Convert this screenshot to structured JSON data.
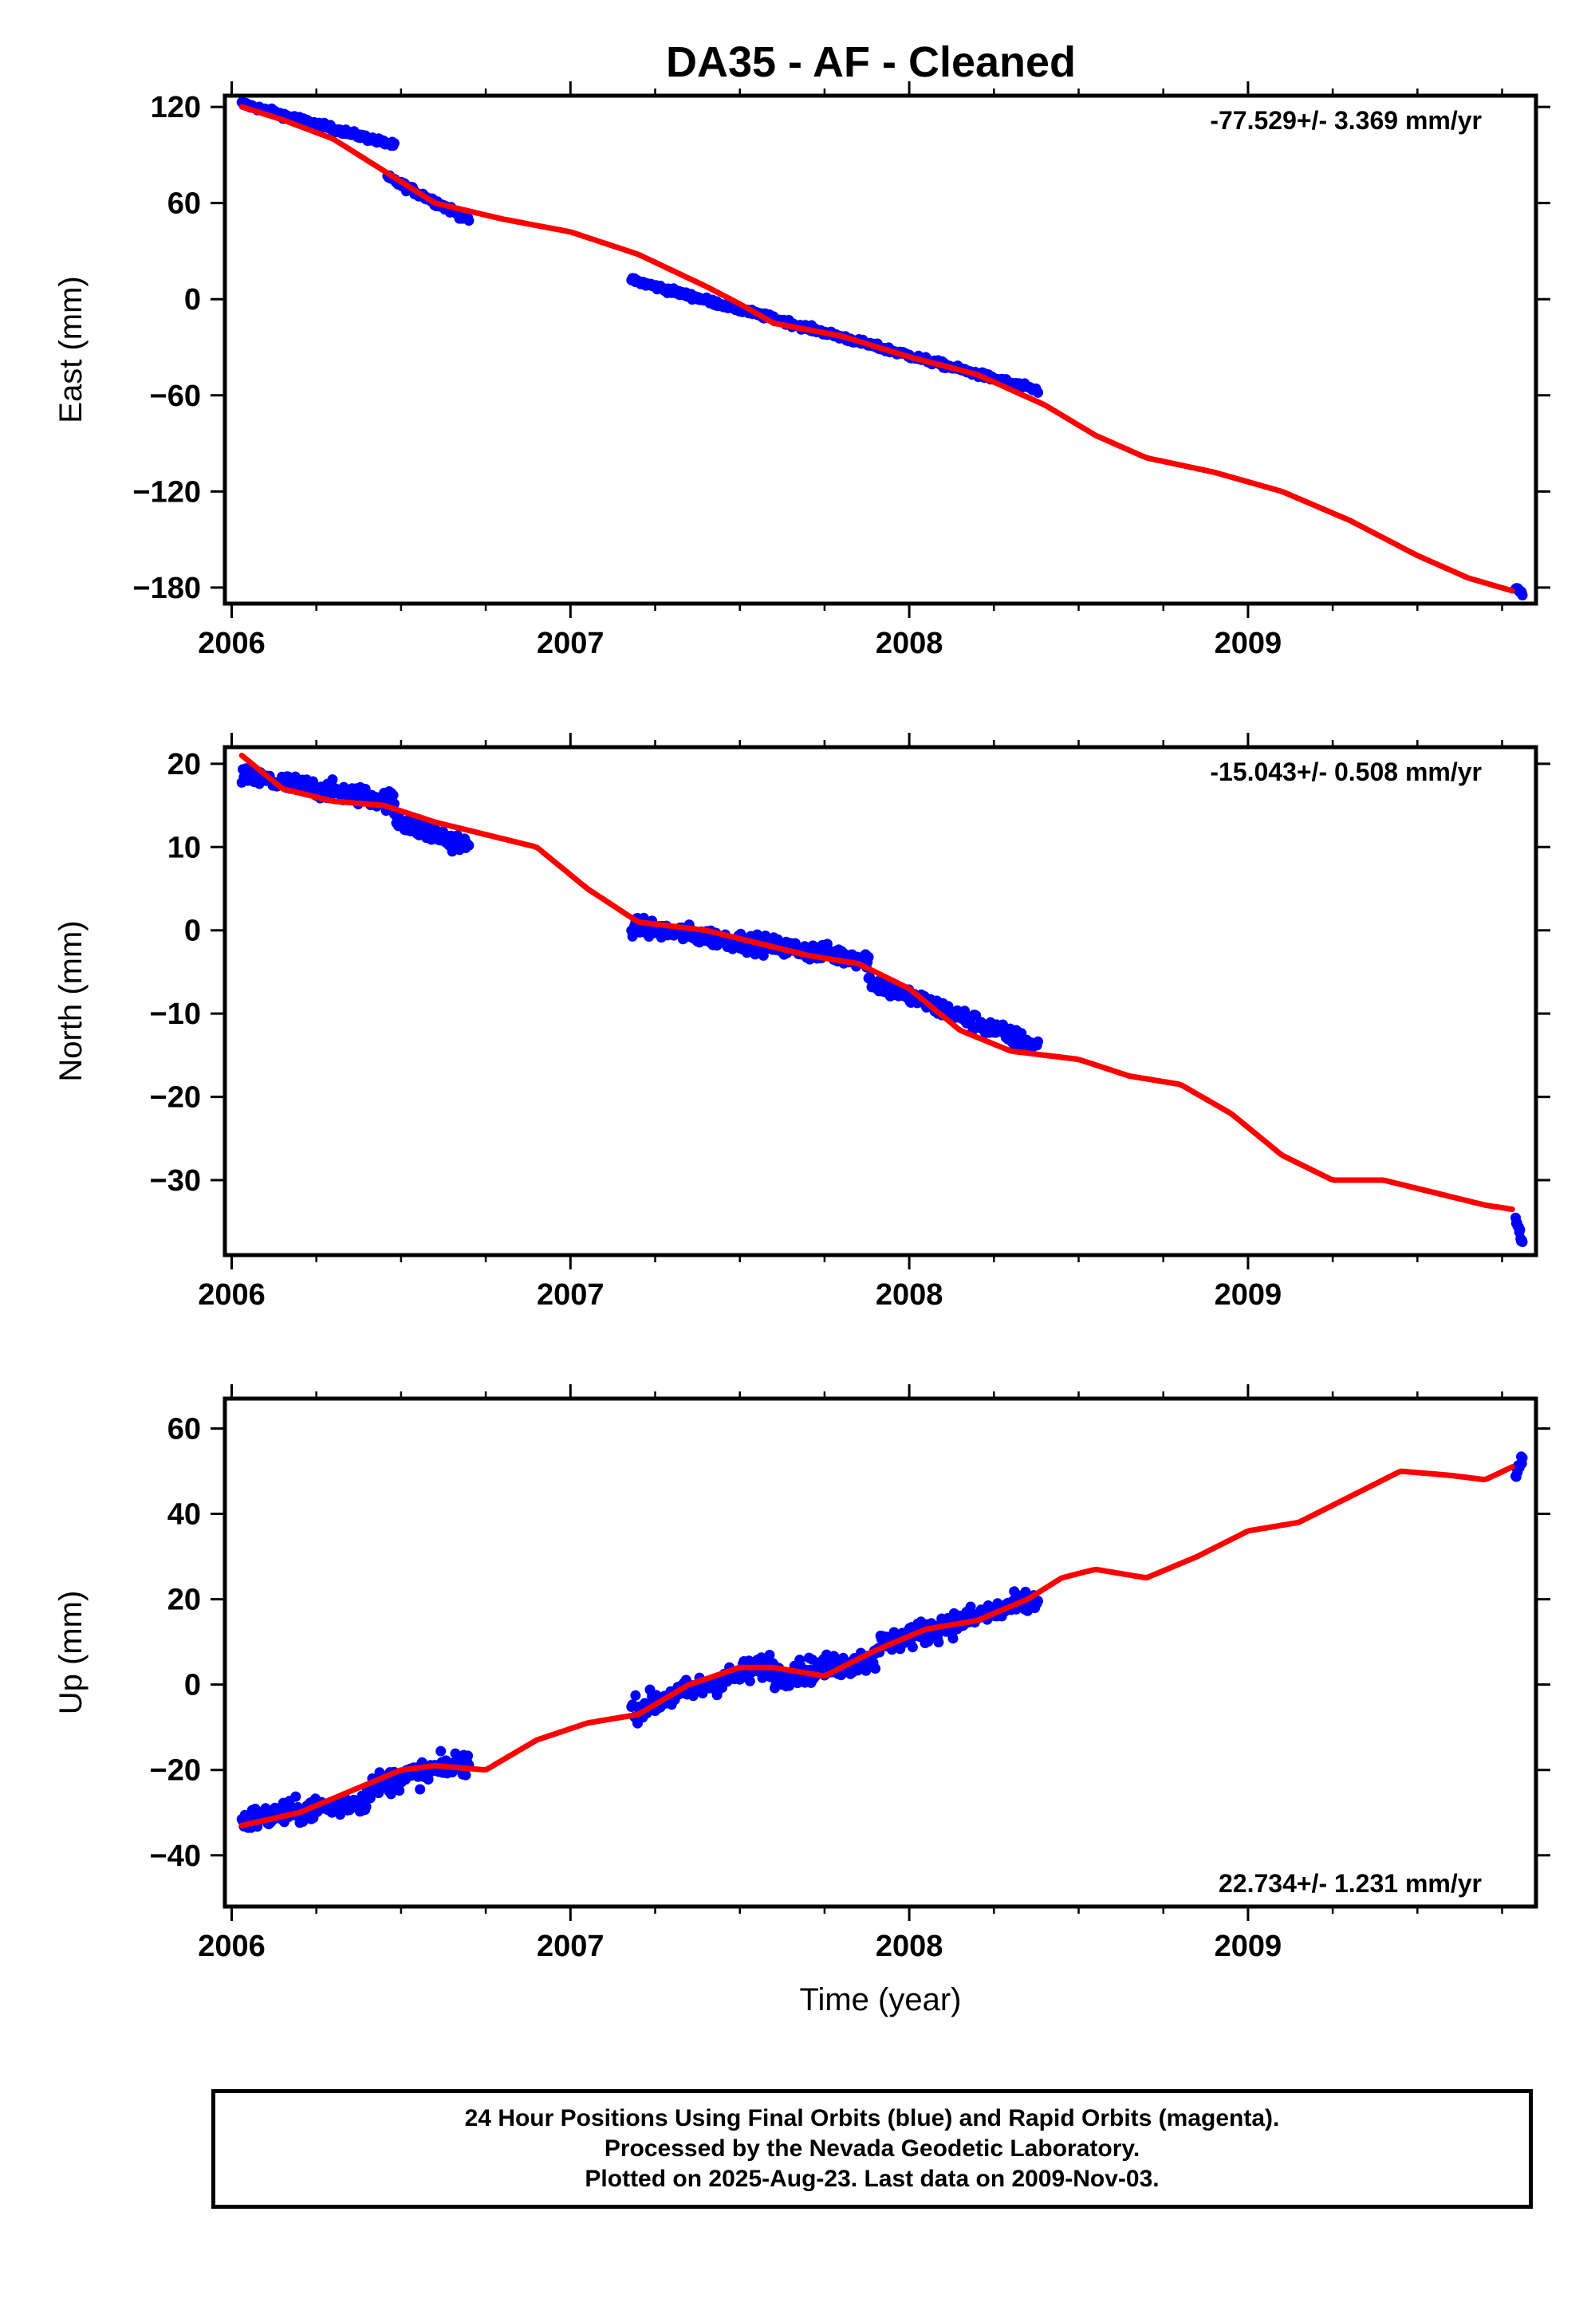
{
  "colors": {
    "data_points": "#0000ff",
    "model_fit": "#ff0000",
    "axes": "#000000",
    "background": "#ffffff"
  },
  "chart_data": [
    {
      "type": "scatter",
      "title": "DA35  - AF - Cleaned",
      "ylabel": "East (mm)",
      "xlabel": "",
      "rate_label": "-77.529+/- 3.369 mm/yr",
      "xlim": [
        2005.98,
        2009.85
      ],
      "ylim": [
        -190,
        127
      ],
      "x_ticks": [
        2006,
        2007,
        2008,
        2009
      ],
      "y_ticks": [
        120,
        60,
        0,
        -60,
        -120,
        -180
      ],
      "grid": false,
      "series": [
        {
          "role": "data",
          "segments": [
            {
              "t": [
                2006.03,
                2006.48
              ],
              "start": 122,
              "end": 96,
              "spread": 2.5
            },
            {
              "t": [
                2006.46,
                2006.7
              ],
              "start": 76,
              "end": 50,
              "spread": 3
            },
            {
              "t": [
                2007.18,
                2008.38
              ],
              "start": 12,
              "end": -57,
              "spread": 2.5
            },
            {
              "t": [
                2009.79,
                2009.81
              ],
              "start": -180,
              "end": -184,
              "spread": 1.5
            }
          ]
        },
        {
          "role": "model",
          "x": [
            2006.03,
            2006.15,
            2006.3,
            2006.45,
            2006.6,
            2006.8,
            2007.0,
            2007.2,
            2007.4,
            2007.5,
            2007.6,
            2007.8,
            2008.0,
            2008.2,
            2008.4,
            2008.55,
            2008.7,
            2008.9,
            2009.1,
            2009.3,
            2009.5,
            2009.65,
            2009.78
          ],
          "y": [
            120,
            112,
            100,
            80,
            60,
            50,
            42,
            28,
            8,
            -3,
            -15,
            -23,
            -36,
            -47,
            -66,
            -85,
            -99,
            -108,
            -120,
            -138,
            -160,
            -174,
            -182
          ]
        }
      ]
    },
    {
      "type": "scatter",
      "title": "",
      "ylabel": "North (mm)",
      "xlabel": "",
      "rate_label": "-15.043+/- 0.508 mm/yr",
      "xlim": [
        2005.98,
        2009.85
      ],
      "ylim": [
        -39,
        22
      ],
      "x_ticks": [
        2006,
        2007,
        2008,
        2009
      ],
      "y_ticks": [
        20,
        10,
        0,
        -10,
        -20,
        -30
      ],
      "grid": false,
      "series": [
        {
          "role": "data",
          "segments": [
            {
              "t": [
                2006.03,
                2006.48
              ],
              "start": 18.5,
              "end": 15.5,
              "spread": 1.6
            },
            {
              "t": [
                2006.48,
                2006.7
              ],
              "start": 13.5,
              "end": 10,
              "spread": 1.8
            },
            {
              "t": [
                2007.18,
                2007.88
              ],
              "start": 0.5,
              "end": -3.5,
              "spread": 1.5
            },
            {
              "t": [
                2007.88,
                2008.38
              ],
              "start": -6,
              "end": -14,
              "spread": 1.5
            },
            {
              "t": [
                2009.79,
                2009.81
              ],
              "start": -34.5,
              "end": -37.5,
              "spread": 0.8
            }
          ]
        },
        {
          "role": "model",
          "x": [
            2006.03,
            2006.15,
            2006.3,
            2006.45,
            2006.6,
            2006.75,
            2006.9,
            2007.05,
            2007.2,
            2007.4,
            2007.55,
            2007.7,
            2007.85,
            2008.0,
            2008.15,
            2008.3,
            2008.5,
            2008.65,
            2008.8,
            2008.95,
            2009.1,
            2009.25,
            2009.4,
            2009.55,
            2009.7,
            2009.78
          ],
          "y": [
            21,
            17,
            15.5,
            15,
            13,
            11.5,
            10,
            5,
            1,
            0,
            -1.5,
            -3,
            -4,
            -7,
            -12,
            -14.5,
            -15.5,
            -17.5,
            -18.5,
            -22,
            -27,
            -30,
            -30,
            -31.5,
            -33,
            -33.5
          ]
        }
      ]
    },
    {
      "type": "scatter",
      "title": "",
      "ylabel": "Up (mm)",
      "xlabel": "Time (year)",
      "rate_label": "22.734+/- 1.231 mm/yr",
      "xlim": [
        2005.98,
        2009.85
      ],
      "ylim": [
        -52,
        67
      ],
      "x_ticks": [
        2006,
        2007,
        2008,
        2009
      ],
      "y_ticks": [
        60,
        40,
        20,
        0,
        -20,
        -40
      ],
      "grid": false,
      "series": [
        {
          "role": "data",
          "segments": [
            {
              "t": [
                2006.03,
                2006.4
              ],
              "start": -32,
              "end": -27,
              "spread": 4
            },
            {
              "t": [
                2006.4,
                2006.7
              ],
              "start": -24,
              "end": -18,
              "spread": 4
            },
            {
              "t": [
                2007.18,
                2007.6
              ],
              "start": -6,
              "end": 5,
              "spread": 4
            },
            {
              "t": [
                2007.6,
                2007.9
              ],
              "start": 2,
              "end": 6,
              "spread": 4
            },
            {
              "t": [
                2007.9,
                2008.38
              ],
              "start": 9,
              "end": 20,
              "spread": 4
            },
            {
              "t": [
                2009.79,
                2009.81
              ],
              "start": 49,
              "end": 53,
              "spread": 2
            }
          ]
        },
        {
          "role": "model",
          "x": [
            2006.03,
            2006.2,
            2006.35,
            2006.5,
            2006.6,
            2006.75,
            2006.9,
            2007.05,
            2007.2,
            2007.35,
            2007.5,
            2007.6,
            2007.75,
            2007.9,
            2008.05,
            2008.2,
            2008.35,
            2008.45,
            2008.55,
            2008.7,
            2008.85,
            2009.0,
            2009.15,
            2009.3,
            2009.45,
            2009.6,
            2009.7,
            2009.78
          ],
          "y": [
            -33,
            -30,
            -25,
            -20,
            -19,
            -20,
            -13,
            -9,
            -7,
            0,
            4,
            4,
            2,
            8,
            13,
            15,
            20,
            25,
            27,
            25,
            30,
            36,
            38,
            44,
            50,
            49,
            48,
            51
          ]
        }
      ]
    }
  ],
  "footer": {
    "line1": "24 Hour Positions Using Final Orbits (blue) and Rapid Orbits (magenta).",
    "line2": "Processed by the Nevada Geodetic Laboratory.",
    "line3": "Plotted on 2025-Aug-23. Last data on 2009-Nov-03."
  }
}
